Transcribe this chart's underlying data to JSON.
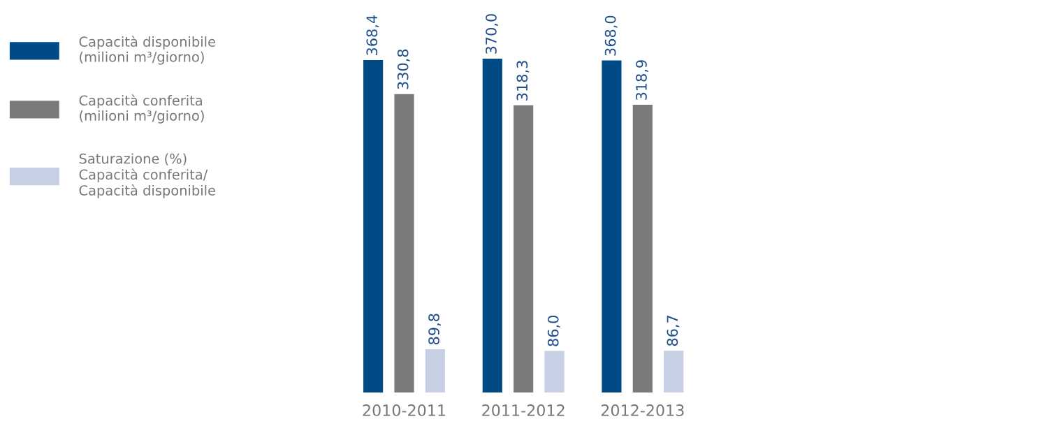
{
  "chart_data": {
    "type": "bar",
    "categories": [
      "2010-2011",
      "2011-2012",
      "2012-2013"
    ],
    "series": [
      {
        "name": "Capacità disponibile\n(milioni m³/giorno)",
        "color": "#004a85",
        "values": [
          368.4,
          370.0,
          368.0
        ],
        "value_labels": [
          "368,4",
          "370,0",
          "368,0"
        ]
      },
      {
        "name": "Capacità conferita\n(milioni m³/giorno)",
        "color": "#7a7a7a",
        "values": [
          330.8,
          318.3,
          318.9
        ],
        "value_labels": [
          "330,8",
          "318,3",
          "318,9"
        ]
      },
      {
        "name": "Saturazione (%)\nCapacità conferita/\nCapacità disponibile",
        "color": "#c6cfe3",
        "values": [
          89.8,
          86.0,
          86.7
        ],
        "value_labels": [
          "89,8",
          "86,0",
          "86,7"
        ],
        "axis": "y2"
      }
    ],
    "tick_labels": "x",
    "grid": false,
    "legend": "left"
  }
}
